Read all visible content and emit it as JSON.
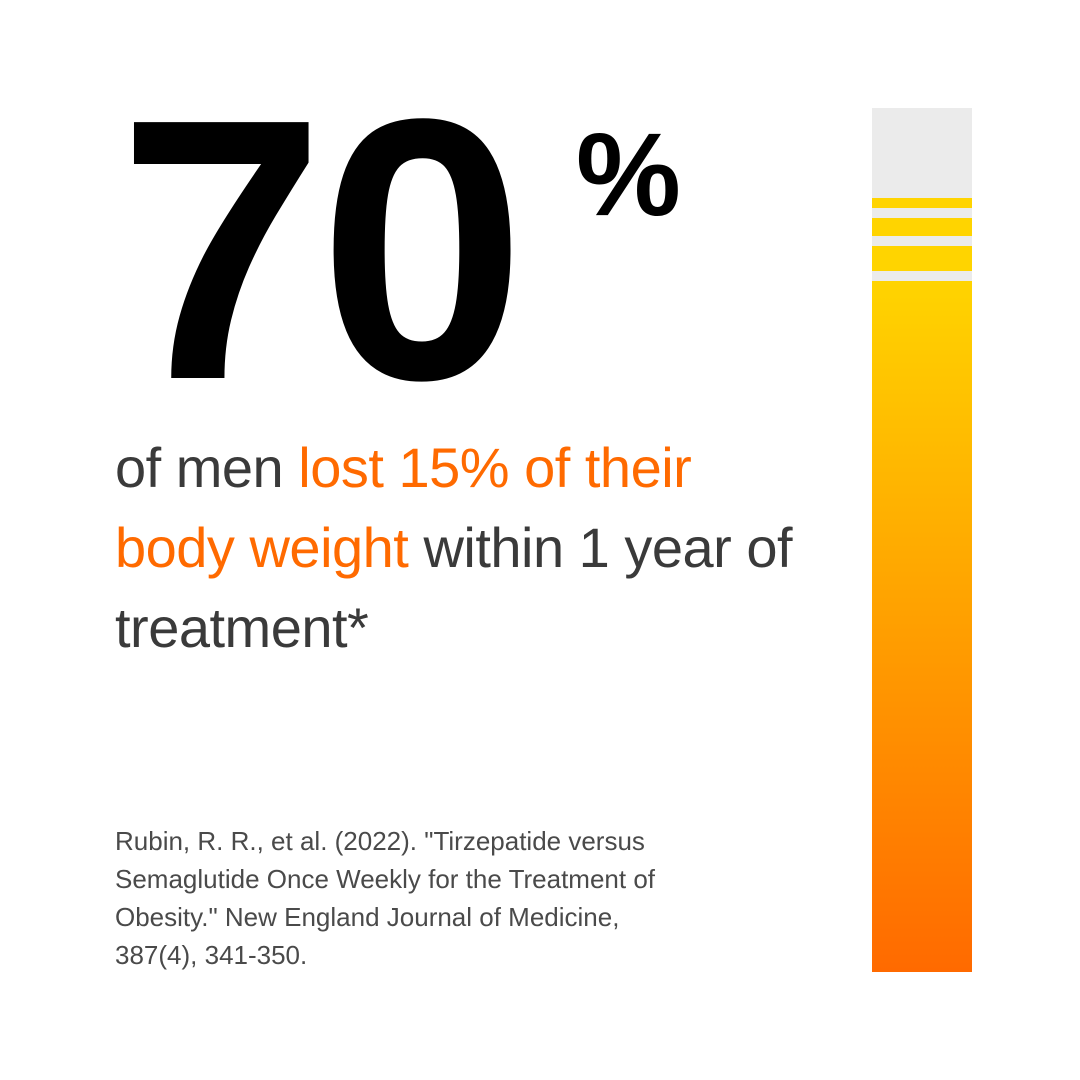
{
  "stat": {
    "number": "70",
    "unit": "%"
  },
  "statement": {
    "lead": "of men",
    "highlight": "lost 15% of their body weight",
    "tail": "within 1 year of treatment*"
  },
  "citation": {
    "lines": [
      "Rubin, R. R., et al. (2022). \"Tirzepatide versus",
      "Semaglutide Once Weekly for the Treatment of",
      "Obesity.\" New England Journal of Medicine,",
      "387(4), 341-350."
    ]
  }
}
